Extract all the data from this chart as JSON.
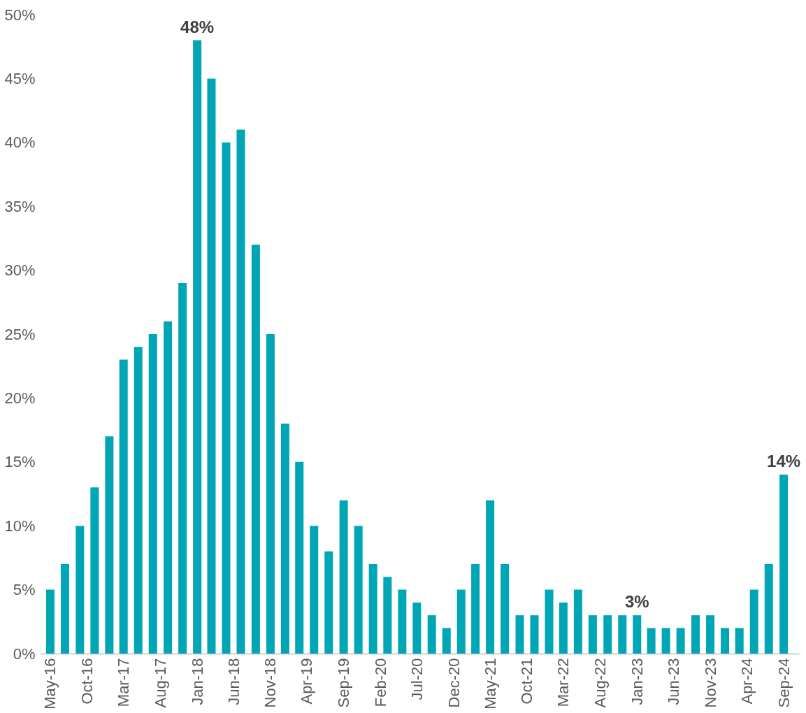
{
  "chart_data": {
    "type": "bar",
    "color": "#00a6b6",
    "x": [
      "2016-05",
      "2016-07",
      "2016-09",
      "2016-11",
      "2017-01",
      "2017-03",
      "2017-05",
      "2017-07",
      "2017-09",
      "2017-11",
      "2018-01",
      "2018-03",
      "2018-05",
      "2018-07",
      "2018-09",
      "2018-11",
      "2019-01",
      "2019-03",
      "2019-05",
      "2019-07",
      "2019-09",
      "2019-11",
      "2020-01",
      "2020-03",
      "2020-05",
      "2020-07",
      "2020-09",
      "2020-11",
      "2021-01",
      "2021-03",
      "2021-05",
      "2021-07",
      "2021-09",
      "2021-11",
      "2022-01",
      "2022-03",
      "2022-05",
      "2022-07",
      "2022-09",
      "2022-11",
      "2023-01",
      "2023-03",
      "2023-05",
      "2023-07",
      "2023-09",
      "2023-11",
      "2024-01",
      "2024-03",
      "2024-05",
      "2024-07",
      "2024-09"
    ],
    "values": [
      5,
      7,
      10,
      13,
      17,
      23,
      24,
      25,
      26,
      29,
      48,
      45,
      40,
      41,
      32,
      25,
      18,
      15,
      10,
      8,
      12,
      10,
      7,
      6,
      5,
      4,
      3,
      2,
      5,
      7,
      12,
      7,
      3,
      3,
      5,
      4,
      5,
      3,
      3,
      3,
      3,
      2,
      2,
      2,
      3,
      3,
      2,
      2,
      5,
      7,
      14
    ],
    "value_labels": [
      null,
      null,
      null,
      null,
      null,
      null,
      null,
      null,
      null,
      null,
      "48%",
      null,
      null,
      null,
      null,
      null,
      null,
      null,
      null,
      null,
      null,
      null,
      null,
      null,
      null,
      null,
      null,
      null,
      null,
      null,
      null,
      null,
      null,
      null,
      null,
      null,
      null,
      null,
      null,
      null,
      "3%",
      null,
      null,
      null,
      null,
      null,
      null,
      null,
      null,
      null,
      "14%"
    ],
    "xlim": [
      "2016-04-05",
      "2024-10-20"
    ],
    "xticks": [
      {
        "value": "2016-05",
        "label": "May-16"
      },
      {
        "value": "2016-10",
        "label": "Oct-16"
      },
      {
        "value": "2017-03",
        "label": "Mar-17"
      },
      {
        "value": "2017-08",
        "label": "Aug-17"
      },
      {
        "value": "2018-01",
        "label": "Jan-18"
      },
      {
        "value": "2018-06",
        "label": "Jun-18"
      },
      {
        "value": "2018-11",
        "label": "Nov-18"
      },
      {
        "value": "2019-04",
        "label": "Apr-19"
      },
      {
        "value": "2019-09",
        "label": "Sep-19"
      },
      {
        "value": "2020-02",
        "label": "Feb-20"
      },
      {
        "value": "2020-07",
        "label": "Jul-20"
      },
      {
        "value": "2020-12",
        "label": "Dec-20"
      },
      {
        "value": "2021-05",
        "label": "May-21"
      },
      {
        "value": "2021-10",
        "label": "Oct-21"
      },
      {
        "value": "2022-03",
        "label": "Mar-22"
      },
      {
        "value": "2022-08",
        "label": "Aug-22"
      },
      {
        "value": "2023-01",
        "label": "Jan-23"
      },
      {
        "value": "2023-06",
        "label": "Jun-23"
      },
      {
        "value": "2023-11",
        "label": "Nov-23"
      },
      {
        "value": "2024-04",
        "label": "Apr-24"
      },
      {
        "value": "2024-09",
        "label": "Sep-24"
      }
    ],
    "ylim": [
      0,
      50
    ],
    "yticks": [
      {
        "value": 0,
        "label": "0%"
      },
      {
        "value": 5,
        "label": "5%"
      },
      {
        "value": 10,
        "label": "10%"
      },
      {
        "value": 15,
        "label": "15%"
      },
      {
        "value": 20,
        "label": "20%"
      },
      {
        "value": 25,
        "label": "25%"
      },
      {
        "value": 30,
        "label": "30%"
      },
      {
        "value": 35,
        "label": "35%"
      },
      {
        "value": 40,
        "label": "40%"
      },
      {
        "value": 45,
        "label": "45%"
      },
      {
        "value": 50,
        "label": "50%"
      }
    ],
    "grid": false
  }
}
